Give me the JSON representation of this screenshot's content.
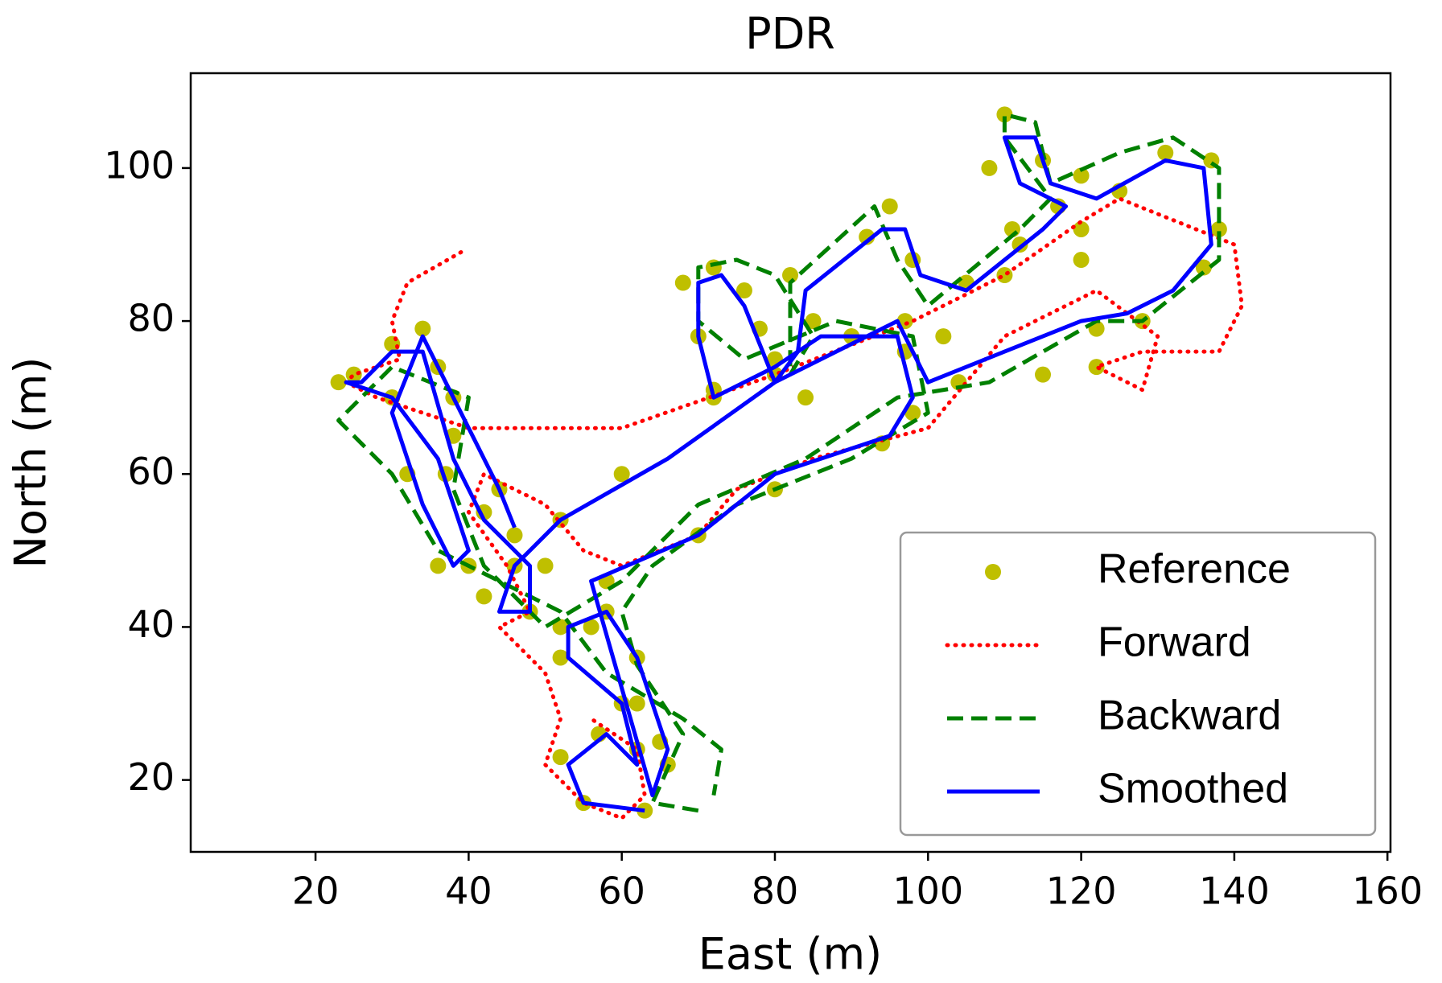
{
  "chart_data": {
    "type": "line",
    "title": "PDR",
    "xlabel": "East (m)",
    "ylabel": "North (m)",
    "xlim": [
      3.7,
      160.4
    ],
    "ylim": [
      10.6,
      112.4
    ],
    "xticks": [
      20,
      40,
      60,
      80,
      100,
      120,
      140,
      160
    ],
    "yticks": [
      20,
      40,
      60,
      80,
      100
    ],
    "legend": "lower right",
    "series": [
      {
        "name": "Reference",
        "color": "#bfbf00",
        "style": "marker",
        "x": [
          63,
          55,
          52,
          57,
          62,
          60,
          52,
          52,
          58,
          62,
          65,
          66,
          62,
          56,
          58,
          70,
          80,
          94,
          98,
          97,
          90,
          80,
          72,
          70,
          68,
          72,
          76,
          78,
          80,
          84,
          85,
          82,
          92,
          95,
          98,
          97,
          105,
          112,
          117,
          120,
          115,
          110,
          108,
          111,
          120,
          125,
          131,
          137,
          138,
          136,
          128,
          122,
          122,
          115,
          104,
          102,
          120,
          110,
          90,
          72,
          60,
          52,
          46,
          42,
          48,
          50,
          42,
          38,
          36,
          30,
          25,
          23,
          30,
          37,
          40,
          36,
          32,
          30,
          34,
          38,
          44,
          46
        ],
        "y": [
          16,
          17,
          23,
          26,
          24,
          30,
          36,
          40,
          42,
          36,
          25,
          22,
          30,
          40,
          46,
          52,
          58,
          64,
          68,
          76,
          78,
          75,
          71,
          78,
          85,
          87,
          84,
          79,
          73,
          70,
          80,
          86,
          91,
          95,
          88,
          80,
          85,
          90,
          95,
          99,
          101,
          107,
          100,
          92,
          92,
          97,
          102,
          101,
          92,
          87,
          80,
          79,
          74,
          73,
          72,
          78,
          88,
          86,
          78,
          70,
          60,
          54,
          48,
          44,
          42,
          48,
          55,
          65,
          74,
          77,
          73,
          72,
          70,
          60,
          48,
          48,
          60,
          70,
          79,
          70,
          58,
          52
        ]
      },
      {
        "name": "Forward",
        "color": "#ff0000",
        "style": "dotted",
        "x": [
          39,
          32,
          30,
          31,
          25,
          24,
          28,
          40,
          60,
          80,
          98,
          110,
          120,
          125,
          130,
          140,
          141,
          138,
          128,
          122,
          128,
          130,
          122,
          110,
          100,
          85,
          75,
          70,
          60,
          55,
          50,
          42,
          40,
          45,
          48,
          44,
          50,
          52,
          50,
          55,
          60,
          63,
          62,
          56
        ],
        "y": [
          89,
          85,
          80,
          75,
          73,
          72,
          70,
          66,
          66,
          73,
          80,
          86,
          93,
          96,
          94,
          90,
          82,
          76,
          76,
          74,
          71,
          78,
          84,
          78,
          66,
          62,
          58,
          52,
          48,
          50,
          56,
          60,
          55,
          48,
          42,
          40,
          34,
          28,
          22,
          17,
          15,
          18,
          24,
          28
        ]
      },
      {
        "name": "Backward",
        "color": "#008000",
        "style": "dashed",
        "x": [
          70,
          64,
          68,
          62,
          60,
          64,
          75,
          90,
          100,
          98,
          88,
          76,
          70,
          70,
          75,
          80,
          85,
          82,
          82,
          93,
          96,
          100,
          112,
          116,
          110,
          110,
          114,
          116,
          125,
          132,
          138,
          138,
          128,
          122,
          108,
          96,
          84,
          70,
          60,
          50,
          42,
          38,
          40,
          30,
          23,
          30,
          36,
          44,
          52,
          58,
          68,
          73,
          72
        ],
        "y": [
          16,
          17,
          26,
          35,
          42,
          48,
          56,
          62,
          68,
          78,
          80,
          75,
          80,
          87,
          88,
          86,
          78,
          73,
          85,
          95,
          88,
          82,
          92,
          96,
          104,
          107,
          106,
          98,
          102,
          104,
          100,
          88,
          80,
          80,
          72,
          70,
          62,
          56,
          46,
          40,
          48,
          58,
          70,
          74,
          67,
          60,
          50,
          46,
          42,
          34,
          28,
          24,
          18
        ]
      },
      {
        "name": "Smoothed",
        "color": "#0000ff",
        "style": "solid",
        "x": [
          63,
          55,
          53,
          58,
          62,
          60,
          53,
          53,
          58,
          62,
          66,
          64,
          60,
          56,
          70,
          80,
          95,
          98,
          96,
          86,
          80,
          72,
          70,
          70,
          73,
          76,
          78,
          80,
          83,
          84,
          94,
          97,
          99,
          105,
          115,
          118,
          112,
          110,
          114,
          116,
          122,
          131,
          136,
          137,
          132,
          126,
          120,
          110,
          100,
          96,
          80,
          66,
          52,
          46,
          44,
          48,
          48,
          42,
          38,
          34,
          30,
          26,
          24,
          30,
          36,
          40,
          38,
          34,
          30,
          34,
          38,
          44,
          46
        ],
        "y": [
          16,
          17,
          22,
          26,
          22,
          30,
          36,
          40,
          42,
          36,
          24,
          18,
          32,
          46,
          52,
          60,
          65,
          70,
          78,
          78,
          74,
          70,
          78,
          85,
          86,
          82,
          77,
          72,
          76,
          84,
          92,
          92,
          86,
          84,
          92,
          95,
          98,
          104,
          104,
          98,
          96,
          101,
          100,
          90,
          84,
          81,
          80,
          76,
          72,
          80,
          72,
          62,
          54,
          48,
          42,
          42,
          48,
          54,
          62,
          76,
          76,
          72,
          72,
          70,
          62,
          50,
          48,
          56,
          68,
          78,
          70,
          58,
          53
        ]
      }
    ]
  }
}
